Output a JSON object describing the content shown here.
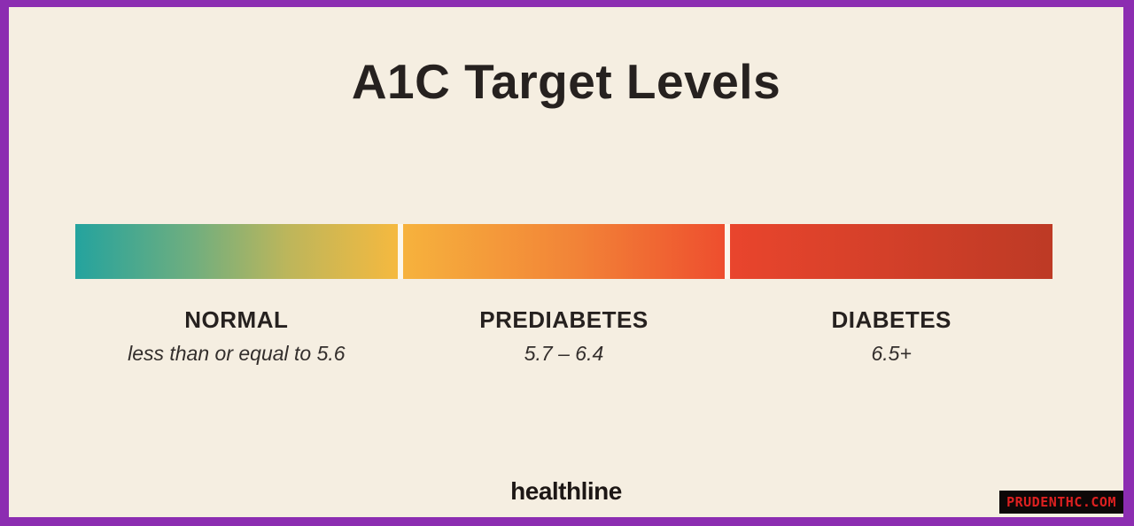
{
  "header": {
    "title": "A1C Target Levels"
  },
  "chart_data": {
    "type": "bar",
    "title": "A1C Target Levels",
    "orientation": "horizontal",
    "description": "Color-gradient scale of A1C blood test target ranges",
    "categories": [
      "NORMAL",
      "PREDIABETES",
      "DIABETES"
    ],
    "ranges": [
      {
        "label": "NORMAL",
        "value_text": "less than or equal to 5.6",
        "min": null,
        "max": 5.6,
        "color_start": "#24a39e",
        "color_end": "#f5b93f"
      },
      {
        "label": "PREDIABETES",
        "value_text": "5.7 – 6.4",
        "min": 5.7,
        "max": 6.4,
        "color_start": "#f6b23d",
        "color_end": "#ee4e2e"
      },
      {
        "label": "DIABETES",
        "value_text": "6.5+",
        "min": 6.5,
        "max": null,
        "color_start": "#e9452d",
        "color_end": "#bd3a25"
      }
    ],
    "legend_position": "below-bar",
    "grid": false
  },
  "footer": {
    "brand": "healthline",
    "watermark": "PRUDENTHC.COM"
  },
  "colors": {
    "frame-purple": "#8c2db1",
    "canvas-cream": "#f5eee1",
    "ink": "#26211f",
    "teal": "#24a39e",
    "yellow": "#f5b93f",
    "orange": "#f6b23d",
    "orange-red": "#ee4e2e",
    "red": "#e9452d",
    "dark-red": "#bd3a25",
    "divider-white": "#fcf7eb",
    "watermark-bg": "#0d0707",
    "watermark-red": "#dd2020"
  }
}
